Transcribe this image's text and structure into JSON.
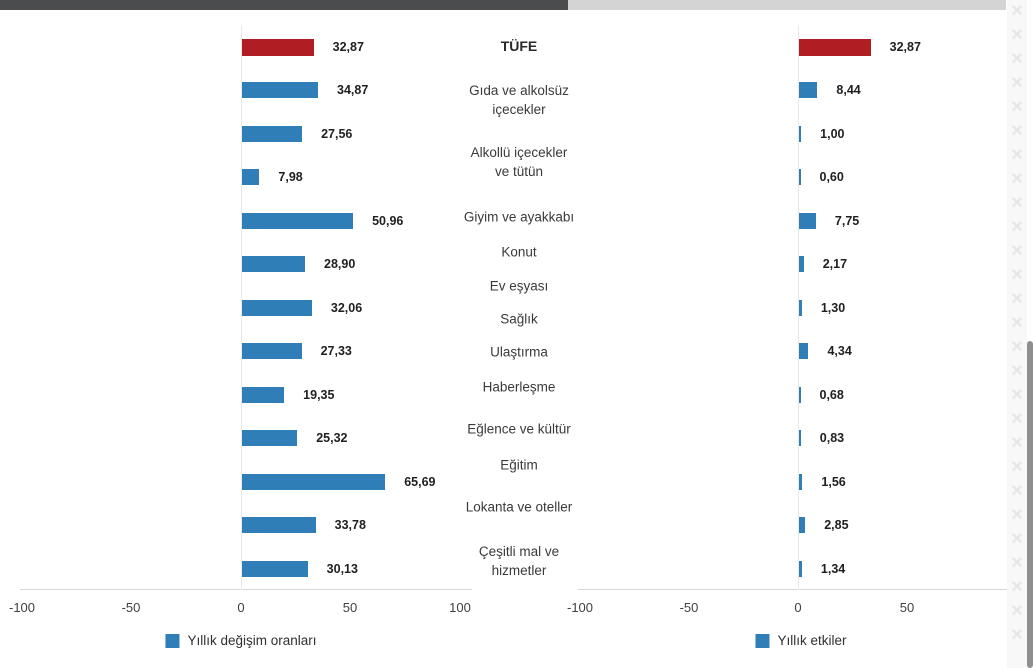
{
  "chart_data": {
    "type": "bar",
    "orientation": "horizontal",
    "title": "",
    "categories": [
      "TÜFE",
      "Gıda ve alkolsüz içecekler",
      "Alkollü içecekler ve tütün",
      "Giyim ve ayakkabı",
      "Konut",
      "Ev eşyası",
      "Sağlık",
      "Ulaştırma",
      "Haberleşme",
      "Eğlence ve kültür",
      "Eğitim",
      "Lokanta ve oteller",
      "Çeşitli mal ve hizmetler"
    ],
    "series": [
      {
        "name": "Yıllık değişim oranları",
        "panel": "left",
        "values": [
          32.87,
          34.87,
          27.56,
          7.98,
          50.96,
          28.9,
          32.06,
          27.33,
          19.35,
          25.32,
          65.69,
          33.78,
          30.13
        ],
        "value_labels": [
          "32,87",
          "34,87",
          "27,56",
          "7,98",
          "50,96",
          "28,90",
          "32,06",
          "27,33",
          "19,35",
          "25,32",
          "65,69",
          "33,78",
          "30,13"
        ]
      },
      {
        "name": "Yıllık etkiler",
        "panel": "right",
        "values": [
          32.87,
          8.44,
          1.0,
          0.6,
          7.75,
          2.17,
          1.3,
          4.34,
          0.68,
          0.83,
          1.56,
          2.85,
          1.34
        ],
        "value_labels": [
          "32,87",
          "8,44",
          "1,00",
          "0,60",
          "7,75",
          "2,17",
          "1,30",
          "4,34",
          "0,68",
          "0,83",
          "1,56",
          "2,85",
          "1,34"
        ]
      }
    ],
    "highlight_category": "TÜFE",
    "xlim": [
      -100,
      100
    ],
    "x_ticks": [
      "-100",
      "-50",
      "0",
      "50",
      "100"
    ],
    "grid": "zero-line-only",
    "legend_position": "bottom",
    "colors": {
      "bar": "#2f7eb8",
      "highlight": "#b01e24"
    }
  },
  "watermark": {
    "glyph": "✕",
    "count": 27
  }
}
